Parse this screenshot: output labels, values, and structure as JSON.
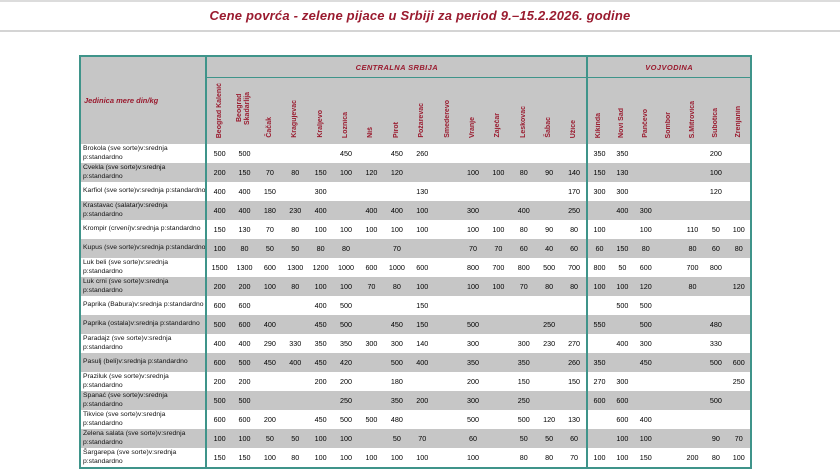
{
  "title": "Cene povrća - zelene pijace u Srbiji za period  9.–15.2.2026. godine",
  "colors": {
    "accent_red": "#9a1b2f",
    "border_teal": "#3f948a",
    "stripe_gray": "#c6c6c6"
  },
  "table": {
    "unit_header": "Jedinica mere din/kg",
    "region_groups": [
      {
        "label": "CENTRALNA SRBIJA",
        "span": 15
      },
      {
        "label": "VOJVODINA",
        "span": 7
      }
    ],
    "cities": [
      "Beograd Kalenić",
      "Beograd Skadarlija",
      "Čačak",
      "Kragujevac",
      "Kraljevo",
      "Loznica",
      "Niš",
      "Pirot",
      "Požarevac",
      "Smederevo",
      "Vranje",
      "Zaječar",
      "Leskovac",
      "Šabac",
      "Užice",
      "Kikinda",
      "Novi Sad",
      "Pančevo",
      "Sombor",
      "S.Mitrovica",
      "Subotica",
      "Zrenjanin"
    ],
    "rows": [
      {
        "label": "Brokola (sve sorte)v:srednja p:standardno",
        "nowrap": false,
        "values": [
          500,
          500,
          "",
          "",
          "",
          450,
          "",
          450,
          260,
          "",
          "",
          "",
          "",
          "",
          "",
          350,
          350,
          "",
          "",
          "",
          200,
          ""
        ]
      },
      {
        "label": "Cvekla (sve sorte)v:srednja p:standardno",
        "nowrap": false,
        "values": [
          200,
          150,
          70,
          80,
          150,
          100,
          120,
          120,
          "",
          "",
          100,
          100,
          80,
          90,
          140,
          150,
          130,
          "",
          "",
          "",
          100,
          ""
        ]
      },
      {
        "label": "Karfiol (sve sorte)v:srednja p:standardno",
        "nowrap": true,
        "values": [
          400,
          400,
          150,
          "",
          300,
          "",
          "",
          "",
          130,
          "",
          "",
          "",
          "",
          "",
          170,
          300,
          300,
          "",
          "",
          "",
          120,
          ""
        ]
      },
      {
        "label": "Krastavac (salatar)v:srednja p:standardno",
        "nowrap": false,
        "values": [
          400,
          400,
          180,
          230,
          400,
          "",
          400,
          400,
          100,
          "",
          300,
          "",
          400,
          "",
          250,
          "",
          400,
          300,
          "",
          "",
          "",
          ""
        ]
      },
      {
        "label": "Krompir (crveni)v:srednja p:standardno",
        "nowrap": false,
        "values": [
          150,
          130,
          70,
          80,
          100,
          100,
          100,
          100,
          100,
          "",
          100,
          100,
          80,
          90,
          80,
          100,
          "",
          100,
          "",
          110,
          50,
          100
        ]
      },
      {
        "label": "Kupus (sve sorte)v:srednja p:standardno",
        "nowrap": false,
        "values": [
          100,
          80,
          50,
          50,
          80,
          80,
          "",
          70,
          "",
          "",
          70,
          70,
          60,
          40,
          60,
          60,
          150,
          80,
          "",
          80,
          60,
          80
        ]
      },
      {
        "label": "Luk beli (sve sorte)v:srednja p:standardno",
        "nowrap": false,
        "values": [
          1500,
          1300,
          600,
          1300,
          1200,
          1000,
          600,
          1000,
          600,
          "",
          800,
          700,
          800,
          500,
          700,
          800,
          50,
          600,
          "",
          700,
          800,
          ""
        ]
      },
      {
        "label": "Luk crni (sve sorte)v:srednja p:standardno",
        "nowrap": false,
        "values": [
          200,
          200,
          100,
          80,
          100,
          100,
          70,
          80,
          100,
          "",
          100,
          100,
          70,
          80,
          80,
          100,
          100,
          120,
          "",
          80,
          "",
          120
        ]
      },
      {
        "label": "Paprika (Babura)v:srednja p:standardno",
        "nowrap": false,
        "values": [
          600,
          600,
          "",
          "",
          400,
          500,
          "",
          "",
          150,
          "",
          "",
          "",
          "",
          "",
          "",
          "",
          500,
          500,
          "",
          "",
          "",
          ""
        ]
      },
      {
        "label": "Paprika (ostala)v:srednja p:standardno",
        "nowrap": false,
        "values": [
          500,
          600,
          400,
          "",
          450,
          500,
          "",
          450,
          150,
          "",
          500,
          "",
          "",
          250,
          "",
          550,
          "",
          500,
          "",
          "",
          480,
          ""
        ]
      },
      {
        "label": "Paradajz (sve sorte)v:srednja p:standardno",
        "nowrap": false,
        "values": [
          400,
          400,
          290,
          330,
          350,
          350,
          300,
          300,
          140,
          "",
          300,
          "",
          300,
          230,
          270,
          "",
          400,
          300,
          "",
          "",
          330,
          ""
        ]
      },
      {
        "label": "Pasulj (beli)v:srednja p:standardno",
        "nowrap": false,
        "values": [
          600,
          500,
          450,
          400,
          450,
          420,
          "",
          500,
          400,
          "",
          350,
          "",
          350,
          "",
          260,
          350,
          "",
          450,
          "",
          "",
          500,
          600
        ]
      },
      {
        "label": "Praziluk (sve sorte)v:srednja p:standardno",
        "nowrap": false,
        "values": [
          200,
          200,
          "",
          "",
          200,
          200,
          "",
          180,
          "",
          "",
          200,
          "",
          150,
          "",
          150,
          270,
          300,
          "",
          "",
          "",
          "",
          250
        ]
      },
      {
        "label": "Spanać (sve sorte)v:srednja p:standardno",
        "nowrap": false,
        "values": [
          500,
          500,
          "",
          "",
          "",
          250,
          "",
          350,
          200,
          "",
          300,
          "",
          250,
          "",
          "",
          600,
          600,
          "",
          "",
          "",
          500,
          ""
        ]
      },
      {
        "label": "Tikvice (sve sorte)v:srednja p:standardno",
        "nowrap": false,
        "values": [
          600,
          600,
          200,
          "",
          450,
          500,
          500,
          480,
          "",
          "",
          500,
          "",
          500,
          120,
          130,
          "",
          600,
          400,
          "",
          "",
          "",
          ""
        ]
      },
      {
        "label": "Zelena salata (sve sorte)v:srednja p:standardno",
        "nowrap": false,
        "values": [
          100,
          100,
          50,
          50,
          100,
          100,
          "",
          50,
          70,
          "",
          60,
          "",
          50,
          50,
          60,
          "",
          100,
          100,
          "",
          "",
          90,
          70
        ]
      },
      {
        "label": "Šargarepa (sve sorte)v:srednja p:standardno",
        "nowrap": false,
        "values": [
          150,
          150,
          100,
          80,
          100,
          100,
          100,
          100,
          100,
          "",
          100,
          "",
          80,
          80,
          70,
          100,
          100,
          150,
          "",
          200,
          80,
          100
        ]
      }
    ]
  }
}
